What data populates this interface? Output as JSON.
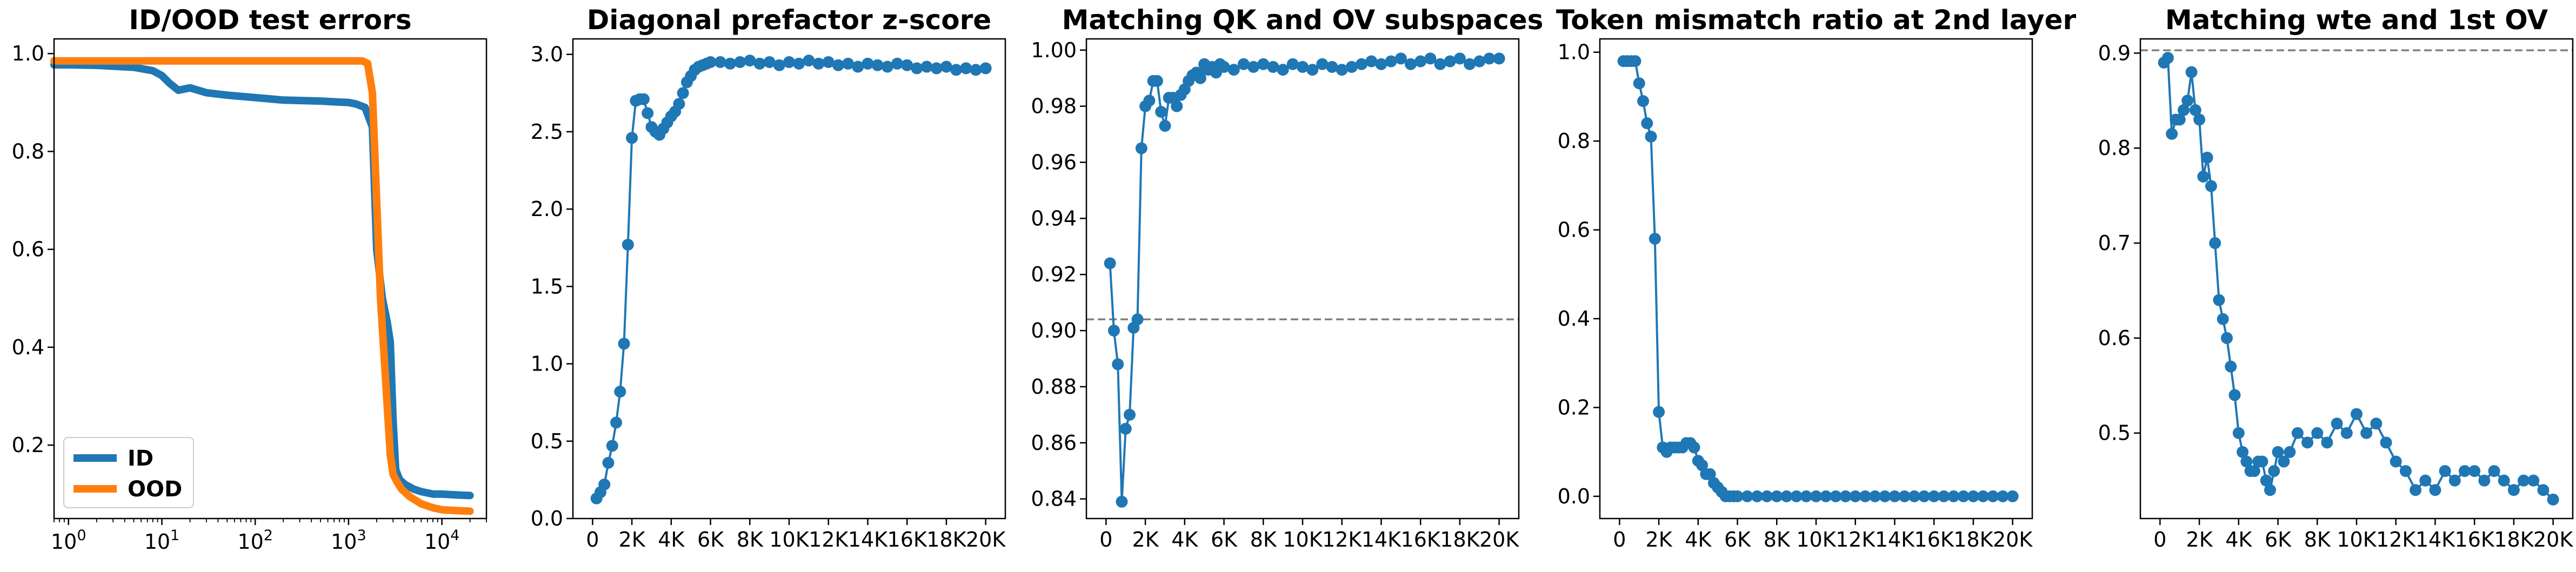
{
  "chart_data": [
    {
      "type": "line",
      "title": "ID/OOD test errors",
      "xscale": "log",
      "xlim": [
        0.7,
        30000
      ],
      "ylim": [
        0.05,
        1.03
      ],
      "grid": false,
      "legend": "lower-left",
      "xticks": [
        1,
        10,
        100,
        1000,
        10000
      ],
      "xtick_labels": [
        "10^0",
        "10^1",
        "10^2",
        "10^3",
        "10^4"
      ],
      "yticks": [
        0.2,
        0.4,
        0.6,
        0.8,
        1.0
      ],
      "ytick_labels": [
        "0.2",
        "0.4",
        "0.6",
        "0.8",
        "1.0"
      ],
      "series": [
        {
          "name": "ID",
          "color": "#1f77b4",
          "x": [
            0.7,
            1,
            2,
            5,
            8,
            10,
            12,
            15,
            20,
            30,
            50,
            100,
            200,
            500,
            1000,
            1200,
            1500,
            1800,
            2000,
            2300,
            2600,
            2800,
            3000,
            3200,
            3500,
            4000,
            5000,
            6000,
            8000,
            10000,
            15000,
            20000
          ],
          "y": [
            0.977,
            0.977,
            0.976,
            0.972,
            0.965,
            0.955,
            0.94,
            0.925,
            0.93,
            0.92,
            0.915,
            0.91,
            0.905,
            0.903,
            0.9,
            0.897,
            0.89,
            0.85,
            0.6,
            0.5,
            0.45,
            0.41,
            0.25,
            0.15,
            0.13,
            0.12,
            0.11,
            0.105,
            0.1,
            0.1,
            0.098,
            0.097
          ]
        },
        {
          "name": "OOD",
          "color": "#ff7f0e",
          "x": [
            0.7,
            1,
            10,
            100,
            1000,
            1400,
            1600,
            1800,
            2000,
            2200,
            2500,
            2800,
            3000,
            3300,
            3700,
            4500,
            6000,
            8000,
            10000,
            15000,
            20000
          ],
          "y": [
            0.985,
            0.985,
            0.985,
            0.985,
            0.985,
            0.985,
            0.98,
            0.92,
            0.7,
            0.5,
            0.33,
            0.18,
            0.14,
            0.125,
            0.11,
            0.095,
            0.08,
            0.072,
            0.068,
            0.066,
            0.065
          ]
        }
      ]
    },
    {
      "type": "line",
      "title": "Diagonal prefactor z-score",
      "markers": true,
      "xlim": [
        -1000,
        21000
      ],
      "ylim": [
        0,
        3.1
      ],
      "grid": false,
      "xticks": [
        0,
        2000,
        4000,
        6000,
        8000,
        10000,
        12000,
        14000,
        16000,
        18000,
        20000
      ],
      "xtick_labels": [
        "0",
        "2K",
        "4K",
        "6K",
        "8K",
        "10K",
        "12K",
        "14K",
        "16K",
        "18K",
        "20K"
      ],
      "yticks": [
        0.0,
        0.5,
        1.0,
        1.5,
        2.0,
        2.5,
        3.0
      ],
      "ytick_labels": [
        "0.0",
        "0.5",
        "1.0",
        "1.5",
        "2.0",
        "2.5",
        "3.0"
      ],
      "series": [
        {
          "color": "#1f77b4",
          "x": [
            200,
            400,
            600,
            800,
            1000,
            1200,
            1400,
            1600,
            1800,
            2000,
            2200,
            2400,
            2600,
            2800,
            3000,
            3200,
            3400,
            3600,
            3800,
            4000,
            4200,
            4400,
            4600,
            4800,
            5000,
            5200,
            5400,
            5600,
            5800,
            6000,
            6500,
            7000,
            7500,
            8000,
            8500,
            9000,
            9500,
            10000,
            10500,
            11000,
            11500,
            12000,
            12500,
            13000,
            13500,
            14000,
            14500,
            15000,
            15500,
            16000,
            16500,
            17000,
            17500,
            18000,
            18500,
            19000,
            19500,
            20000
          ],
          "y": [
            0.13,
            0.17,
            0.22,
            0.36,
            0.47,
            0.62,
            0.82,
            1.13,
            1.77,
            2.46,
            2.7,
            2.71,
            2.71,
            2.62,
            2.53,
            2.5,
            2.48,
            2.52,
            2.56,
            2.6,
            2.63,
            2.68,
            2.75,
            2.82,
            2.86,
            2.9,
            2.92,
            2.93,
            2.94,
            2.95,
            2.95,
            2.94,
            2.95,
            2.96,
            2.94,
            2.95,
            2.93,
            2.95,
            2.94,
            2.96,
            2.94,
            2.95,
            2.93,
            2.94,
            2.92,
            2.94,
            2.93,
            2.92,
            2.94,
            2.93,
            2.91,
            2.92,
            2.91,
            2.92,
            2.9,
            2.91,
            2.9,
            2.91
          ]
        }
      ]
    },
    {
      "type": "line",
      "title": "Matching QK and OV subspaces",
      "markers": true,
      "xlim": [
        -1000,
        21000
      ],
      "ylim": [
        0.833,
        1.004
      ],
      "grid": false,
      "reference_line": 0.904,
      "xticks": [
        0,
        2000,
        4000,
        6000,
        8000,
        10000,
        12000,
        14000,
        16000,
        18000,
        20000
      ],
      "xtick_labels": [
        "0",
        "2K",
        "4K",
        "6K",
        "8K",
        "10K",
        "12K",
        "14K",
        "16K",
        "18K",
        "20K"
      ],
      "yticks": [
        0.84,
        0.86,
        0.88,
        0.9,
        0.92,
        0.94,
        0.96,
        0.98,
        1.0
      ],
      "ytick_labels": [
        "0.84",
        "0.86",
        "0.88",
        "0.90",
        "0.92",
        "0.94",
        "0.96",
        "0.98",
        "1.00"
      ],
      "series": [
        {
          "color": "#1f77b4",
          "x": [
            200,
            400,
            600,
            800,
            1000,
            1200,
            1400,
            1600,
            1800,
            2000,
            2200,
            2400,
            2600,
            2800,
            3000,
            3200,
            3400,
            3600,
            3800,
            4000,
            4200,
            4400,
            4600,
            4800,
            5000,
            5200,
            5400,
            5600,
            5800,
            6000,
            6500,
            7000,
            7500,
            8000,
            8500,
            9000,
            9500,
            10000,
            10500,
            11000,
            11500,
            12000,
            12500,
            13000,
            13500,
            14000,
            14500,
            15000,
            15500,
            16000,
            16500,
            17000,
            17500,
            18000,
            18500,
            19000,
            19500,
            20000
          ],
          "y": [
            0.924,
            0.9,
            0.888,
            0.839,
            0.865,
            0.87,
            0.901,
            0.904,
            0.965,
            0.98,
            0.982,
            0.989,
            0.989,
            0.978,
            0.973,
            0.983,
            0.983,
            0.98,
            0.984,
            0.986,
            0.989,
            0.991,
            0.992,
            0.99,
            0.995,
            0.993,
            0.994,
            0.992,
            0.995,
            0.994,
            0.993,
            0.995,
            0.994,
            0.995,
            0.994,
            0.993,
            0.995,
            0.994,
            0.993,
            0.995,
            0.994,
            0.993,
            0.994,
            0.995,
            0.996,
            0.995,
            0.996,
            0.997,
            0.995,
            0.996,
            0.997,
            0.995,
            0.996,
            0.997,
            0.995,
            0.996,
            0.997,
            0.997
          ]
        }
      ]
    },
    {
      "type": "line",
      "title": "Token mismatch ratio at 2nd layer",
      "markers": true,
      "xlim": [
        -1000,
        21000
      ],
      "ylim": [
        -0.05,
        1.03
      ],
      "grid": false,
      "xticks": [
        0,
        2000,
        4000,
        6000,
        8000,
        10000,
        12000,
        14000,
        16000,
        18000,
        20000
      ],
      "xtick_labels": [
        "0",
        "2K",
        "4K",
        "6K",
        "8K",
        "10K",
        "12K",
        "14K",
        "16K",
        "18K",
        "20K"
      ],
      "yticks": [
        0.0,
        0.2,
        0.4,
        0.6,
        0.8,
        1.0
      ],
      "ytick_labels": [
        "0.0",
        "0.2",
        "0.4",
        "0.6",
        "0.8",
        "1.0"
      ],
      "series": [
        {
          "color": "#1f77b4",
          "x": [
            200,
            400,
            600,
            800,
            1000,
            1200,
            1400,
            1600,
            1800,
            2000,
            2200,
            2400,
            2600,
            2800,
            3000,
            3200,
            3400,
            3600,
            3800,
            4000,
            4200,
            4400,
            4600,
            4800,
            5000,
            5200,
            5400,
            5600,
            5800,
            6000,
            6500,
            7000,
            7500,
            8000,
            8500,
            9000,
            9500,
            10000,
            10500,
            11000,
            11500,
            12000,
            12500,
            13000,
            13500,
            14000,
            14500,
            15000,
            15500,
            16000,
            16500,
            17000,
            17500,
            18000,
            18500,
            19000,
            19500,
            20000
          ],
          "y": [
            0.98,
            0.98,
            0.98,
            0.98,
            0.93,
            0.89,
            0.84,
            0.81,
            0.58,
            0.19,
            0.11,
            0.1,
            0.11,
            0.11,
            0.11,
            0.11,
            0.12,
            0.12,
            0.11,
            0.08,
            0.07,
            0.05,
            0.05,
            0.03,
            0.02,
            0.01,
            0.0,
            0.0,
            0.0,
            0.0,
            0.0,
            0.0,
            0.0,
            0.0,
            0.0,
            0.0,
            0.0,
            0.0,
            0.0,
            0.0,
            0.0,
            0.0,
            0.0,
            0.0,
            0.0,
            0.0,
            0.0,
            0.0,
            0.0,
            0.0,
            0.0,
            0.0,
            0.0,
            0.0,
            0.0,
            0.0,
            0.0,
            0.0
          ]
        }
      ]
    },
    {
      "type": "line",
      "title": "Matching wte and 1st OV",
      "markers": true,
      "xlim": [
        -1000,
        21000
      ],
      "ylim": [
        0.41,
        0.915
      ],
      "grid": false,
      "reference_line": 0.903,
      "xticks": [
        0,
        2000,
        4000,
        6000,
        8000,
        10000,
        12000,
        14000,
        16000,
        18000,
        20000
      ],
      "xtick_labels": [
        "0",
        "2K",
        "4K",
        "6K",
        "8K",
        "10K",
        "12K",
        "14K",
        "16K",
        "18K",
        "20K"
      ],
      "yticks": [
        0.5,
        0.6,
        0.7,
        0.8,
        0.9
      ],
      "ytick_labels": [
        "0.5",
        "0.6",
        "0.7",
        "0.8",
        "0.9"
      ],
      "series": [
        {
          "color": "#1f77b4",
          "x": [
            200,
            400,
            600,
            800,
            1000,
            1200,
            1400,
            1600,
            1800,
            2000,
            2200,
            2400,
            2600,
            2800,
            3000,
            3200,
            3400,
            3600,
            3800,
            4000,
            4200,
            4400,
            4600,
            4800,
            5000,
            5200,
            5400,
            5600,
            5800,
            6000,
            6300,
            6600,
            7000,
            7500,
            8000,
            8500,
            9000,
            9500,
            10000,
            10500,
            11000,
            11500,
            12000,
            12500,
            13000,
            13500,
            14000,
            14500,
            15000,
            15500,
            16000,
            16500,
            17000,
            17500,
            18000,
            18500,
            19000,
            19500,
            20000
          ],
          "y": [
            0.89,
            0.895,
            0.815,
            0.83,
            0.83,
            0.84,
            0.85,
            0.88,
            0.84,
            0.83,
            0.77,
            0.79,
            0.76,
            0.7,
            0.64,
            0.62,
            0.6,
            0.57,
            0.54,
            0.5,
            0.48,
            0.47,
            0.46,
            0.46,
            0.47,
            0.47,
            0.45,
            0.44,
            0.46,
            0.48,
            0.47,
            0.48,
            0.5,
            0.49,
            0.5,
            0.49,
            0.51,
            0.5,
            0.52,
            0.5,
            0.51,
            0.49,
            0.47,
            0.46,
            0.44,
            0.45,
            0.44,
            0.46,
            0.45,
            0.46,
            0.46,
            0.45,
            0.46,
            0.45,
            0.44,
            0.45,
            0.45,
            0.44,
            0.43
          ]
        }
      ]
    }
  ]
}
